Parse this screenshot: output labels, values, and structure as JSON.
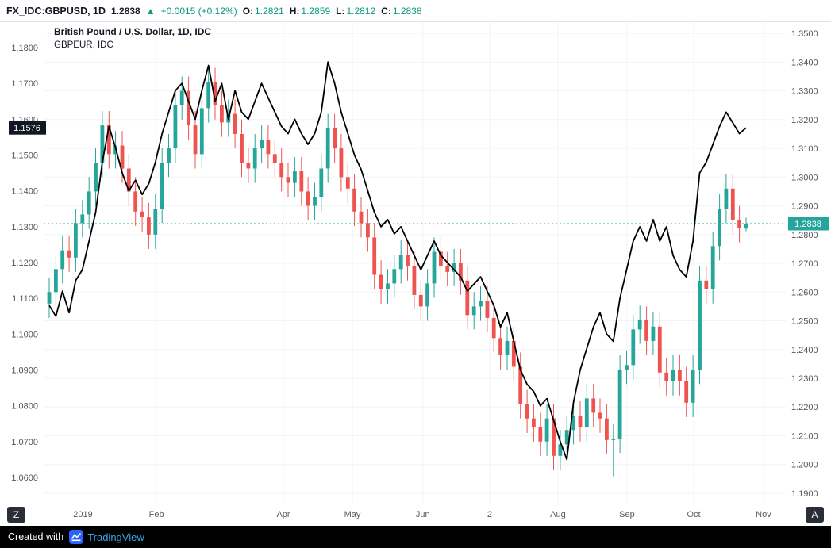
{
  "header": {
    "symbol": "FX_IDC:GBPUSD, 1D",
    "price": "1.2838",
    "change_arrow": "▲",
    "change": "+0.0015 (+0.12%)",
    "ohlc": [
      {
        "label": "O:",
        "value": "1.2821"
      },
      {
        "label": "H:",
        "value": "1.2859"
      },
      {
        "label": "L:",
        "value": "1.2812"
      },
      {
        "label": "C:",
        "value": "1.2838"
      }
    ]
  },
  "legend": {
    "line1": "British Pound / U.S. Dollar, 1D, IDC",
    "line2": "GBPEUR, IDC"
  },
  "toolbar": {
    "z_button": "Z",
    "a_button": "A"
  },
  "footer": {
    "created_with": "Created with",
    "brand": "TradingView"
  },
  "colors": {
    "up": "#26a69a",
    "down": "#ef5350",
    "line": "#000000",
    "header_green": "#089981",
    "left_label_bg": "#131722",
    "right_label_bg": "#26a69a",
    "footer_bg": "#000000",
    "brand_blue": "#2962ff"
  },
  "chart_data": {
    "type": "candlestick+line",
    "title": "British Pound / U.S. Dollar, 1D, IDC",
    "overlay": "GBPEUR, IDC",
    "grid": true,
    "left_axis": {
      "label_for": "GBPEUR",
      "ticks": [
        "1.1800",
        "1.1700",
        "1.1600",
        "1.1500",
        "1.1400",
        "1.1300",
        "1.1200",
        "1.1100",
        "1.1000",
        "1.0900",
        "1.0800",
        "1.0700",
        "1.0600"
      ],
      "domain_top": 1.1871,
      "domain_bottom": 1.0527,
      "current": 1.1576,
      "current_label": "1.1576"
    },
    "right_axis": {
      "label_for": "GBPUSD",
      "ticks": [
        "1.3500",
        "1.3400",
        "1.3300",
        "1.3200",
        "1.3100",
        "1.3000",
        "1.2900",
        "1.2800",
        "1.2700",
        "1.2600",
        "1.2500",
        "1.2400",
        "1.2300",
        "1.2200",
        "1.2100",
        "1.2000",
        "1.1900"
      ],
      "domain_top": 1.3539,
      "domain_bottom": 1.1864,
      "current": 1.2838,
      "current_label": "1.2838"
    },
    "x_labels": [
      {
        "label": "2019",
        "f": 0.053
      },
      {
        "label": "Feb",
        "f": 0.152
      },
      {
        "label": "Apr",
        "f": 0.323
      },
      {
        "label": "May",
        "f": 0.416
      },
      {
        "label": "Jun",
        "f": 0.511
      },
      {
        "label": "2",
        "f": 0.601
      },
      {
        "label": "Aug",
        "f": 0.693
      },
      {
        "label": "Sep",
        "f": 0.786
      },
      {
        "label": "Oct",
        "f": 0.876
      },
      {
        "label": "Nov",
        "f": 0.97
      }
    ],
    "series": [
      {
        "name": "GBPUSD",
        "type": "candle",
        "axis": "right",
        "up_color": "#26a69a",
        "down_color": "#ef5350",
        "candles": [
          [
            1.256,
            1.265,
            1.251,
            1.26
          ],
          [
            1.26,
            1.273,
            1.255,
            1.268
          ],
          [
            1.268,
            1.2795,
            1.263,
            1.2745
          ],
          [
            1.2745,
            1.2795,
            1.267,
            1.272
          ],
          [
            1.272,
            1.289,
            1.267,
            1.284
          ],
          [
            1.284,
            1.292,
            1.279,
            1.287
          ],
          [
            1.287,
            1.3,
            1.282,
            1.295
          ],
          [
            1.295,
            1.31,
            1.29,
            1.305
          ],
          [
            1.305,
            1.323,
            1.3,
            1.318
          ],
          [
            1.318,
            1.323,
            1.303,
            1.308
          ],
          [
            1.308,
            1.316,
            1.303,
            1.311
          ],
          [
            1.311,
            1.316,
            1.298,
            1.303
          ],
          [
            1.303,
            1.308,
            1.29,
            1.295
          ],
          [
            1.295,
            1.3,
            1.283,
            1.288
          ],
          [
            1.288,
            1.293,
            1.281,
            1.286
          ],
          [
            1.286,
            1.291,
            1.275,
            1.28
          ],
          [
            1.28,
            1.294,
            1.275,
            1.289
          ],
          [
            1.289,
            1.31,
            1.284,
            1.305
          ],
          [
            1.305,
            1.315,
            1.3,
            1.31
          ],
          [
            1.31,
            1.33,
            1.305,
            1.325
          ],
          [
            1.325,
            1.335,
            1.32,
            1.33
          ],
          [
            1.33,
            1.335,
            1.313,
            1.318
          ],
          [
            1.318,
            1.323,
            1.303,
            1.308
          ],
          [
            1.308,
            1.329,
            1.303,
            1.324
          ],
          [
            1.324,
            1.338,
            1.319,
            1.333
          ],
          [
            1.333,
            1.338,
            1.32,
            1.325
          ],
          [
            1.325,
            1.33,
            1.314,
            1.319
          ],
          [
            1.319,
            1.327,
            1.314,
            1.322
          ],
          [
            1.322,
            1.327,
            1.31,
            1.315
          ],
          [
            1.315,
            1.32,
            1.3,
            1.305
          ],
          [
            1.305,
            1.31,
            1.298,
            1.303
          ],
          [
            1.303,
            1.315,
            1.298,
            1.31
          ],
          [
            1.31,
            1.318,
            1.305,
            1.313
          ],
          [
            1.313,
            1.318,
            1.303,
            1.308
          ],
          [
            1.308,
            1.313,
            1.3,
            1.305
          ],
          [
            1.305,
            1.31,
            1.295,
            1.3
          ],
          [
            1.3,
            1.305,
            1.293,
            1.298
          ],
          [
            1.298,
            1.307,
            1.293,
            1.302
          ],
          [
            1.302,
            1.307,
            1.29,
            1.295
          ],
          [
            1.295,
            1.3,
            1.285,
            1.29
          ],
          [
            1.29,
            1.298,
            1.285,
            1.293
          ],
          [
            1.293,
            1.308,
            1.288,
            1.303
          ],
          [
            1.303,
            1.322,
            1.298,
            1.317
          ],
          [
            1.317,
            1.322,
            1.305,
            1.31
          ],
          [
            1.31,
            1.315,
            1.295,
            1.3
          ],
          [
            1.3,
            1.305,
            1.291,
            1.296
          ],
          [
            1.296,
            1.301,
            1.283,
            1.288
          ],
          [
            1.288,
            1.293,
            1.279,
            1.284
          ],
          [
            1.284,
            1.289,
            1.274,
            1.279
          ],
          [
            1.279,
            1.284,
            1.261,
            1.266
          ],
          [
            1.266,
            1.271,
            1.256,
            1.261
          ],
          [
            1.261,
            1.268,
            1.256,
            1.263
          ],
          [
            1.263,
            1.273,
            1.258,
            1.268
          ],
          [
            1.268,
            1.278,
            1.263,
            1.273
          ],
          [
            1.273,
            1.278,
            1.264,
            1.269
          ],
          [
            1.269,
            1.274,
            1.254,
            1.259
          ],
          [
            1.259,
            1.264,
            1.25,
            1.255
          ],
          [
            1.255,
            1.268,
            1.25,
            1.263
          ],
          [
            1.263,
            1.279,
            1.258,
            1.274
          ],
          [
            1.274,
            1.279,
            1.264,
            1.269
          ],
          [
            1.269,
            1.274,
            1.262,
            1.267
          ],
          [
            1.267,
            1.275,
            1.262,
            1.27
          ],
          [
            1.27,
            1.275,
            1.259,
            1.264
          ],
          [
            1.264,
            1.269,
            1.247,
            1.252
          ],
          [
            1.252,
            1.26,
            1.247,
            1.255
          ],
          [
            1.255,
            1.262,
            1.25,
            1.257
          ],
          [
            1.257,
            1.262,
            1.246,
            1.251
          ],
          [
            1.251,
            1.256,
            1.239,
            1.244
          ],
          [
            1.244,
            1.249,
            1.233,
            1.238
          ],
          [
            1.238,
            1.248,
            1.233,
            1.243
          ],
          [
            1.243,
            1.248,
            1.229,
            1.234
          ],
          [
            1.234,
            1.239,
            1.216,
            1.221
          ],
          [
            1.221,
            1.226,
            1.211,
            1.216
          ],
          [
            1.216,
            1.221,
            1.208,
            1.213
          ],
          [
            1.213,
            1.218,
            1.203,
            1.208
          ],
          [
            1.208,
            1.221,
            1.203,
            1.216
          ],
          [
            1.216,
            1.221,
            1.198,
            1.203
          ],
          [
            1.203,
            1.212,
            1.198,
            1.207
          ],
          [
            1.207,
            1.217,
            1.202,
            1.212
          ],
          [
            1.212,
            1.222,
            1.207,
            1.217
          ],
          [
            1.217,
            1.222,
            1.208,
            1.213
          ],
          [
            1.213,
            1.228,
            1.208,
            1.223
          ],
          [
            1.223,
            1.228,
            1.213,
            1.218
          ],
          [
            1.218,
            1.223,
            1.211,
            1.216
          ],
          [
            1.216,
            1.221,
            1.2035,
            1.2085
          ],
          [
            1.2085,
            1.214,
            1.1959,
            1.209
          ],
          [
            1.209,
            1.238,
            1.204,
            1.233
          ],
          [
            1.233,
            1.2396,
            1.228,
            1.2346
          ],
          [
            1.2346,
            1.252,
            1.2296,
            1.247
          ],
          [
            1.247,
            1.2553,
            1.242,
            1.2503
          ],
          [
            1.2503,
            1.255,
            1.238,
            1.243
          ],
          [
            1.243,
            1.253,
            1.238,
            1.248
          ],
          [
            1.248,
            1.253,
            1.227,
            1.232
          ],
          [
            1.232,
            1.237,
            1.224,
            1.229
          ],
          [
            1.229,
            1.238,
            1.224,
            1.233
          ],
          [
            1.233,
            1.238,
            1.224,
            1.229
          ],
          [
            1.229,
            1.234,
            1.2165,
            1.2215
          ],
          [
            1.2215,
            1.238,
            1.2165,
            1.233
          ],
          [
            1.233,
            1.269,
            1.228,
            1.264
          ],
          [
            1.264,
            1.269,
            1.256,
            1.261
          ],
          [
            1.261,
            1.281,
            1.256,
            1.276
          ],
          [
            1.276,
            1.294,
            1.271,
            1.289
          ],
          [
            1.289,
            1.301,
            1.284,
            1.296
          ],
          [
            1.296,
            1.301,
            1.28,
            1.285
          ],
          [
            1.285,
            1.29,
            1.2773,
            1.2823
          ],
          [
            1.2821,
            1.2859,
            1.2812,
            1.2838
          ]
        ]
      },
      {
        "name": "GBPEUR",
        "type": "line",
        "axis": "left",
        "color": "#000000",
        "values": [
          1.108,
          1.105,
          1.112,
          1.106,
          1.115,
          1.118,
          1.126,
          1.134,
          1.148,
          1.158,
          1.152,
          1.145,
          1.14,
          1.143,
          1.139,
          1.142,
          1.148,
          1.156,
          1.162,
          1.168,
          1.17,
          1.165,
          1.16,
          1.168,
          1.175,
          1.165,
          1.17,
          1.16,
          1.168,
          1.162,
          1.16,
          1.165,
          1.17,
          1.166,
          1.162,
          1.158,
          1.156,
          1.16,
          1.156,
          1.153,
          1.156,
          1.162,
          1.176,
          1.17,
          1.162,
          1.156,
          1.15,
          1.146,
          1.14,
          1.134,
          1.13,
          1.132,
          1.128,
          1.13,
          1.126,
          1.122,
          1.118,
          1.122,
          1.126,
          1.122,
          1.12,
          1.118,
          1.116,
          1.112,
          1.114,
          1.116,
          1.112,
          1.108,
          1.102,
          1.106,
          1.098,
          1.09,
          1.086,
          1.084,
          1.08,
          1.082,
          1.076,
          1.07,
          1.065,
          1.081,
          1.09,
          1.096,
          1.102,
          1.106,
          1.1,
          1.098,
          1.11,
          1.118,
          1.126,
          1.13,
          1.126,
          1.132,
          1.126,
          1.13,
          1.122,
          1.118,
          1.116,
          1.126,
          1.145,
          1.148,
          1.153,
          1.158,
          1.162,
          1.159,
          1.156,
          1.1576
        ]
      }
    ]
  }
}
